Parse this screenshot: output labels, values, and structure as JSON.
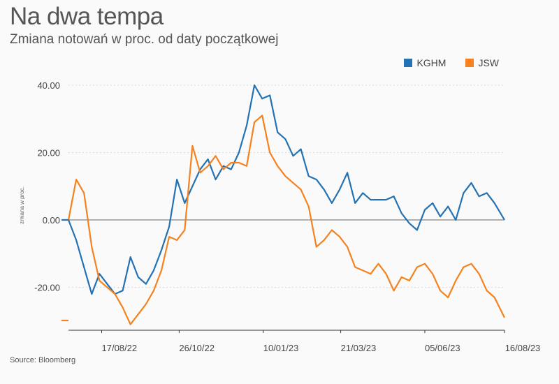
{
  "title": "Na dwa tempa",
  "subtitle": "Zmiana notowań w proc. od daty początkowej",
  "source": "Source: Bloomberg",
  "chart_data": {
    "type": "line",
    "ylabel": "zmiana w proc.",
    "ylim": [
      -33,
      42
    ],
    "yticks": [
      40,
      20,
      0,
      -20
    ],
    "ytick_labels": [
      "40.00",
      "20.00",
      "0.00",
      "-20.00"
    ],
    "xrange": [
      "2022-07-18",
      "2023-08-16"
    ],
    "xticks": [
      "2022-08-17",
      "2022-10-26",
      "2023-01-10",
      "2023-03-21",
      "2023-06-05",
      "2023-08-16"
    ],
    "xtick_labels": [
      "17/08/22",
      "26/10/22",
      "10/01/23",
      "21/03/23",
      "05/06/23",
      "16/08/23"
    ],
    "grid": true,
    "legend_position": "top-right",
    "series": [
      {
        "name": "KGHM",
        "color": "#2472b3",
        "x": [
          "2022-07-18",
          "2022-07-25",
          "2022-08-01",
          "2022-08-08",
          "2022-08-15",
          "2022-08-22",
          "2022-08-29",
          "2022-09-05",
          "2022-09-12",
          "2022-09-19",
          "2022-09-26",
          "2022-10-03",
          "2022-10-10",
          "2022-10-17",
          "2022-10-24",
          "2022-10-31",
          "2022-11-07",
          "2022-11-14",
          "2022-11-21",
          "2022-11-28",
          "2022-12-05",
          "2022-12-12",
          "2022-12-19",
          "2022-12-26",
          "2023-01-02",
          "2023-01-09",
          "2023-01-16",
          "2023-01-23",
          "2023-01-30",
          "2023-02-06",
          "2023-02-13",
          "2023-02-20",
          "2023-02-27",
          "2023-03-06",
          "2023-03-13",
          "2023-03-20",
          "2023-03-27",
          "2023-04-03",
          "2023-04-10",
          "2023-04-17",
          "2023-04-24",
          "2023-05-01",
          "2023-05-08",
          "2023-05-15",
          "2023-05-22",
          "2023-05-29",
          "2023-06-05",
          "2023-06-12",
          "2023-06-19",
          "2023-06-26",
          "2023-07-03",
          "2023-07-10",
          "2023-07-17",
          "2023-07-24",
          "2023-07-31",
          "2023-08-07",
          "2023-08-16"
        ],
        "values": [
          0,
          -6,
          -14,
          -22,
          -16,
          -19,
          -22,
          -21,
          -11,
          -17,
          -19,
          -15,
          -9,
          -2,
          12,
          5,
          10,
          15,
          18,
          12,
          16,
          15,
          20,
          28,
          40,
          36,
          37,
          26,
          24,
          19,
          21,
          13,
          12,
          9,
          5,
          9,
          14,
          5,
          8,
          6,
          6,
          6,
          7,
          2,
          -1,
          -3,
          3,
          5,
          1,
          4,
          0,
          8,
          11,
          7,
          8,
          5,
          0
        ]
      },
      {
        "name": "JSW",
        "color": "#f5821f",
        "x": [
          "2022-07-18",
          "2022-07-25",
          "2022-08-01",
          "2022-08-08",
          "2022-08-15",
          "2022-08-22",
          "2022-08-29",
          "2022-09-05",
          "2022-09-12",
          "2022-09-19",
          "2022-09-26",
          "2022-10-03",
          "2022-10-10",
          "2022-10-17",
          "2022-10-24",
          "2022-10-31",
          "2022-11-07",
          "2022-11-14",
          "2022-11-21",
          "2022-11-28",
          "2022-12-05",
          "2022-12-12",
          "2022-12-19",
          "2022-12-26",
          "2023-01-02",
          "2023-01-09",
          "2023-01-16",
          "2023-01-23",
          "2023-01-30",
          "2023-02-06",
          "2023-02-13",
          "2023-02-20",
          "2023-02-27",
          "2023-03-06",
          "2023-03-13",
          "2023-03-20",
          "2023-03-27",
          "2023-04-03",
          "2023-04-10",
          "2023-04-17",
          "2023-04-24",
          "2023-05-01",
          "2023-05-08",
          "2023-05-15",
          "2023-05-22",
          "2023-05-29",
          "2023-06-05",
          "2023-06-12",
          "2023-06-19",
          "2023-06-26",
          "2023-07-03",
          "2023-07-10",
          "2023-07-17",
          "2023-07-24",
          "2023-07-31",
          "2023-08-07",
          "2023-08-16"
        ],
        "values": [
          0,
          12,
          8,
          -8,
          -18,
          -20,
          -22,
          -26,
          -31,
          -28,
          -25,
          -21,
          -15,
          -5,
          -6,
          -3,
          22,
          14,
          16,
          19,
          15,
          17,
          17,
          16,
          29,
          31,
          20,
          16,
          13,
          11,
          9,
          4,
          -8,
          -6,
          -3,
          -5,
          -8,
          -14,
          -15,
          -16,
          -13,
          -16,
          -21,
          -17,
          -18,
          -14,
          -13,
          -16,
          -21,
          -23,
          -18,
          -14,
          -13,
          -16,
          -21,
          -23,
          -29
        ]
      }
    ]
  }
}
